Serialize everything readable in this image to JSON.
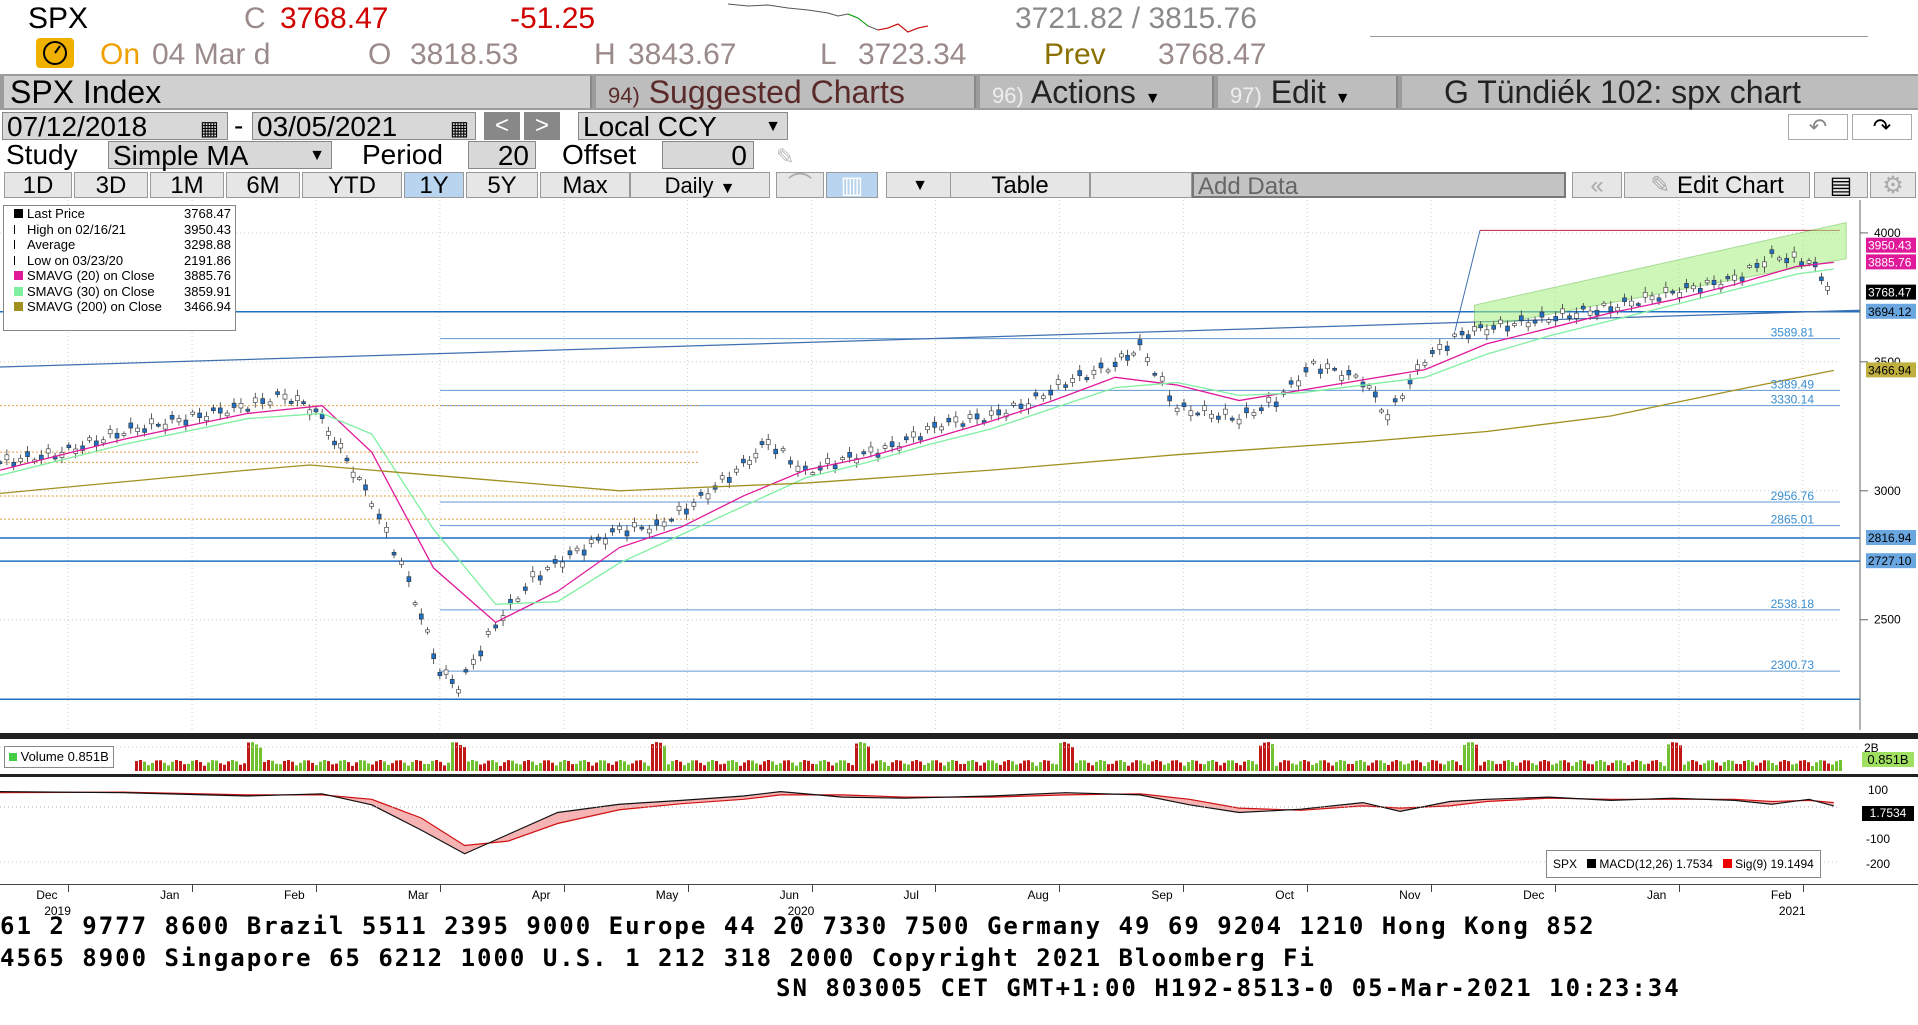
{
  "quote": {
    "ticker": "SPX",
    "close_label": "C",
    "close": "3768.47",
    "change": "-51.25",
    "range": "3721.82 / 3815.76",
    "on_label": "On",
    "date": "04 Mar d",
    "open_label": "O",
    "open": "3818.53",
    "high_label": "H",
    "high": "3843.67",
    "low_label": "L",
    "low": "3723.34",
    "prev_label": "Prev",
    "prev": "3768.47"
  },
  "header": {
    "security": "SPX Index",
    "suggested_num": "94)",
    "suggested": "Suggested Charts",
    "actions_num": "96)",
    "actions": "Actions",
    "edit_num": "97)",
    "edit": "Edit",
    "title": "G Tündiék 102: spx chart"
  },
  "controls": {
    "start_date": "07/12/2018",
    "end_date": "03/05/2021",
    "currency": "Local CCY",
    "study_label": "Study",
    "study": "Simple MA",
    "period_label": "Period",
    "period": "20",
    "offset_label": "Offset",
    "offset": "0",
    "ranges": [
      "1D",
      "3D",
      "1M",
      "6M",
      "YTD",
      "1Y",
      "5Y",
      "Max"
    ],
    "active_range": "1Y",
    "frequency": "Daily",
    "table": "Table",
    "add_data": "Add Data",
    "edit_chart": "Edit Chart"
  },
  "legend": [
    {
      "label": "Last Price",
      "value": "3768.47",
      "color": "#000000",
      "marker": "box"
    },
    {
      "label": "High on 02/16/21",
      "value": "3950.43",
      "color": "#000000",
      "marker": "high"
    },
    {
      "label": "Average",
      "value": "3298.88",
      "color": "#000000",
      "marker": "avg"
    },
    {
      "label": "Low on 03/23/20",
      "value": "2191.86",
      "color": "#000000",
      "marker": "low"
    },
    {
      "label": "SMAVG (20)  on Close",
      "value": "3885.76",
      "color": "#e0189a",
      "marker": "box"
    },
    {
      "label": "SMAVG (30)  on Close",
      "value": "3859.91",
      "color": "#7ef0a0",
      "marker": "box"
    },
    {
      "label": "SMAVG (200)  on Close",
      "value": "3466.94",
      "color": "#a09020",
      "marker": "box"
    }
  ],
  "volume_panel": {
    "label": "Volume 0.851B",
    "value": "0.851B",
    "axis": "2B"
  },
  "macd_panel": {
    "label_spx": "SPX",
    "label_macd": "MACD(12,26) 1.7534",
    "label_sig": "Sig(9) 19.1494",
    "value": "1.7534",
    "axis": [
      "100",
      "-100",
      "-200"
    ]
  },
  "footer": {
    "line1": "61 2 9777 8600 Brazil 5511 2395 9000 Europe 44 20 7330 7500 Germany 49 69 9204 1210 Hong Kong 852",
    "line2": " 4565 8900      Singapore 65 6212 1000      U.S. 1 212 318 2000       Copyright 2021 Bloomberg Fi",
    "line3": "SN 803005 CET  GMT+1:00 H192-8513-0 05-Mar-2021 10:23:34"
  },
  "chart_data": {
    "type": "line",
    "title": "SPX Index",
    "x_labels": [
      {
        "month": "Dec",
        "year": "2019"
      },
      {
        "month": "Jan",
        "year": ""
      },
      {
        "month": "Feb",
        "year": ""
      },
      {
        "month": "Mar",
        "year": ""
      },
      {
        "month": "Apr",
        "year": ""
      },
      {
        "month": "May",
        "year": ""
      },
      {
        "month": "Jun",
        "year": "2020"
      },
      {
        "month": "Jul",
        "year": ""
      },
      {
        "month": "Aug",
        "year": ""
      },
      {
        "month": "Sep",
        "year": ""
      },
      {
        "month": "Oct",
        "year": ""
      },
      {
        "month": "Nov",
        "year": ""
      },
      {
        "month": "Dec",
        "year": ""
      },
      {
        "month": "Jan",
        "year": ""
      },
      {
        "month": "Feb",
        "year": "2021"
      }
    ],
    "y_ticks": [
      4000,
      3500,
      3000,
      2500
    ],
    "ylim": [
      2150,
      4050
    ],
    "series": [
      {
        "name": "Last Price",
        "points": [
          [
            0,
            3110
          ],
          [
            0.5,
            3145
          ],
          [
            1.0,
            3230
          ],
          [
            1.5,
            3280
          ],
          [
            2.0,
            3330
          ],
          [
            2.3,
            3370
          ],
          [
            2.55,
            3310
          ],
          [
            2.8,
            3120
          ],
          [
            3.0,
            2960
          ],
          [
            3.3,
            2650
          ],
          [
            3.55,
            2300
          ],
          [
            3.7,
            2240
          ],
          [
            4.0,
            2480
          ],
          [
            4.3,
            2660
          ],
          [
            4.6,
            2750
          ],
          [
            5.0,
            2850
          ],
          [
            5.3,
            2860
          ],
          [
            5.6,
            2950
          ],
          [
            6.0,
            3100
          ],
          [
            6.2,
            3190
          ],
          [
            6.5,
            3070
          ],
          [
            6.8,
            3120
          ],
          [
            7.2,
            3170
          ],
          [
            7.6,
            3260
          ],
          [
            8.0,
            3290
          ],
          [
            8.3,
            3340
          ],
          [
            8.6,
            3420
          ],
          [
            9.0,
            3490
          ],
          [
            9.2,
            3560
          ],
          [
            9.5,
            3320
          ],
          [
            10.0,
            3280
          ],
          [
            10.3,
            3350
          ],
          [
            10.6,
            3490
          ],
          [
            11.0,
            3430
          ],
          [
            11.2,
            3290
          ],
          [
            11.5,
            3510
          ],
          [
            11.8,
            3610
          ],
          [
            12.0,
            3630
          ],
          [
            12.5,
            3670
          ],
          [
            13.0,
            3710
          ],
          [
            13.5,
            3770
          ],
          [
            14.0,
            3820
          ],
          [
            14.3,
            3910
          ],
          [
            14.6,
            3890
          ],
          [
            14.8,
            3768.47
          ]
        ]
      },
      {
        "name": "SMAVG (20)",
        "points": [
          [
            0,
            3080
          ],
          [
            1.0,
            3200
          ],
          [
            2.0,
            3300
          ],
          [
            2.6,
            3330
          ],
          [
            3.0,
            3150
          ],
          [
            3.5,
            2700
          ],
          [
            4.0,
            2490
          ],
          [
            4.5,
            2610
          ],
          [
            5.0,
            2780
          ],
          [
            5.5,
            2860
          ],
          [
            6.0,
            2980
          ],
          [
            6.5,
            3080
          ],
          [
            7.0,
            3130
          ],
          [
            7.5,
            3200
          ],
          [
            8.0,
            3270
          ],
          [
            8.5,
            3350
          ],
          [
            9.0,
            3440
          ],
          [
            9.5,
            3410
          ],
          [
            10.0,
            3350
          ],
          [
            10.5,
            3390
          ],
          [
            11.0,
            3430
          ],
          [
            11.5,
            3470
          ],
          [
            12.0,
            3570
          ],
          [
            12.5,
            3630
          ],
          [
            13.0,
            3690
          ],
          [
            13.5,
            3740
          ],
          [
            14.0,
            3800
          ],
          [
            14.5,
            3870
          ],
          [
            14.8,
            3885.76
          ]
        ]
      },
      {
        "name": "SMAVG (30)",
        "points": [
          [
            0,
            3060
          ],
          [
            1.0,
            3180
          ],
          [
            2.0,
            3280
          ],
          [
            2.6,
            3300
          ],
          [
            3.0,
            3220
          ],
          [
            3.5,
            2850
          ],
          [
            4.0,
            2560
          ],
          [
            4.5,
            2570
          ],
          [
            5.0,
            2720
          ],
          [
            5.5,
            2830
          ],
          [
            6.0,
            2940
          ],
          [
            6.5,
            3050
          ],
          [
            7.0,
            3110
          ],
          [
            7.5,
            3180
          ],
          [
            8.0,
            3240
          ],
          [
            8.5,
            3320
          ],
          [
            9.0,
            3400
          ],
          [
            9.5,
            3420
          ],
          [
            10.0,
            3370
          ],
          [
            10.5,
            3380
          ],
          [
            11.0,
            3410
          ],
          [
            11.5,
            3440
          ],
          [
            12.0,
            3530
          ],
          [
            12.5,
            3600
          ],
          [
            13.0,
            3660
          ],
          [
            13.5,
            3720
          ],
          [
            14.0,
            3780
          ],
          [
            14.5,
            3840
          ],
          [
            14.8,
            3859.91
          ]
        ]
      },
      {
        "name": "SMAVG (200)",
        "points": [
          [
            0,
            2990
          ],
          [
            2.0,
            3080
          ],
          [
            2.5,
            3100
          ],
          [
            3.5,
            3060
          ],
          [
            5.0,
            3000
          ],
          [
            6.5,
            3030
          ],
          [
            8.0,
            3080
          ],
          [
            9.5,
            3140
          ],
          [
            11.0,
            3190
          ],
          [
            12.0,
            3230
          ],
          [
            13.0,
            3290
          ],
          [
            14.0,
            3390
          ],
          [
            14.8,
            3466.94
          ]
        ]
      }
    ],
    "price_labels": [
      "3950.43",
      "3885.76",
      "3768.47",
      "3694.12",
      "3466.94",
      "2816.94",
      "2727.10"
    ],
    "level_labels": [
      "3589.81",
      "3389.49",
      "3330.14",
      "2956.76",
      "2865.01",
      "2538.18",
      "2300.73"
    ],
    "high": 3950.43,
    "low": 2191.86,
    "average": 3298.88
  },
  "colors": {
    "price_up": "#ffffff",
    "price_down": "#1f6fc4",
    "sma20": "#e0189a",
    "sma30": "#7ef0a0",
    "sma200": "#a09020",
    "channel": "#a8f080",
    "level": "#1f6fc4",
    "macd_area": "#e04040"
  }
}
